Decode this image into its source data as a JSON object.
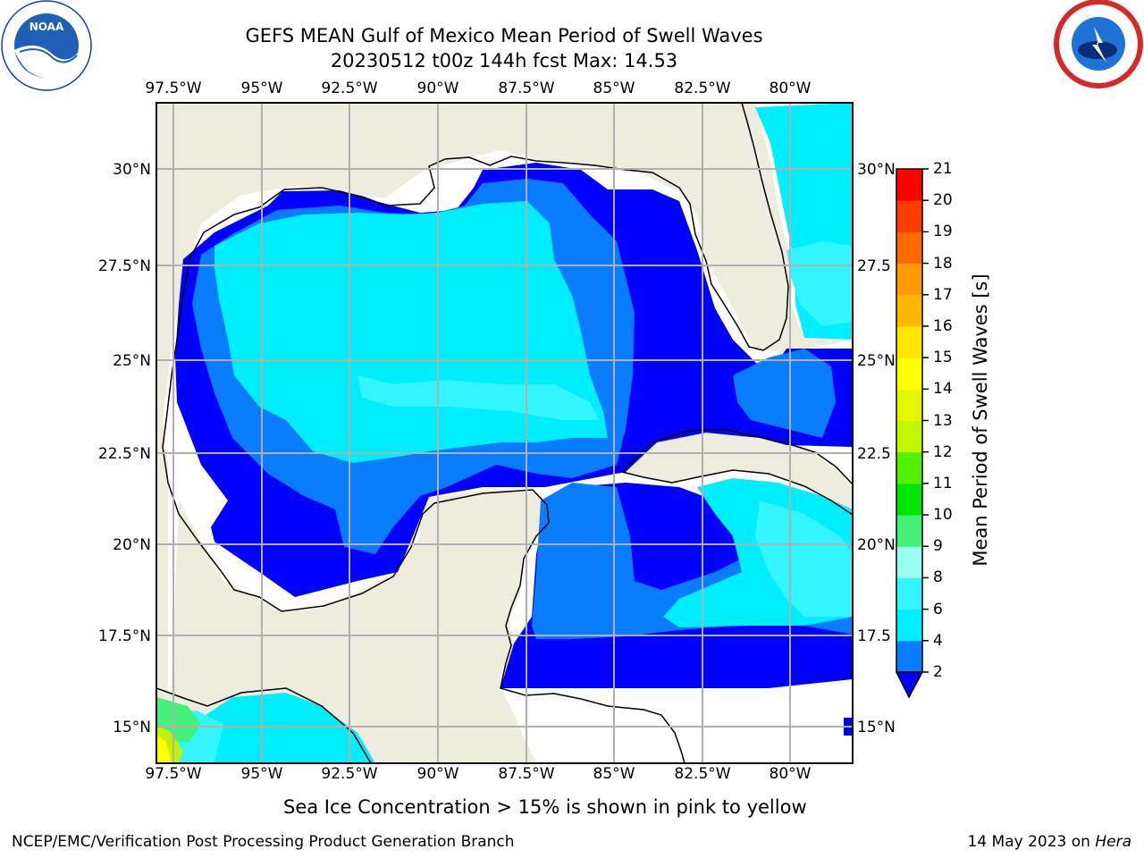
{
  "title_line1": "GEFS MEAN Gulf of Mexico Mean Period of Swell Waves",
  "title_line2": "20230512 t00z 144h fcst   Max: 14.53",
  "lon_ticks": [
    "97.5°W",
    "95°W",
    "92.5°W",
    "90°W",
    "87.5°W",
    "85°W",
    "82.5°W",
    "80°W"
  ],
  "lat_ticks_left": [
    "30°N",
    "27.5°N",
    "25°N",
    "22.5°N",
    "20°N",
    "17.5°N",
    "15°N"
  ],
  "lat_ticks_right": [
    "30°N",
    "27.5",
    "25°N",
    "22.5",
    "20°N",
    "17.5",
    "15°N"
  ],
  "colorbar": {
    "label": "Mean Period of Swell Waves [s]",
    "ticks": [
      "21",
      "20",
      "19",
      "18",
      "17",
      "16",
      "15",
      "14",
      "13",
      "12",
      "11",
      "10",
      "9",
      "8",
      "6",
      "4",
      "2"
    ],
    "bins": [
      {
        "min": 2,
        "max": 4,
        "color": "#0a7cff"
      },
      {
        "min": 4,
        "max": 6,
        "color": "#00eeff"
      },
      {
        "min": 6,
        "max": 8,
        "color": "#33f5ff"
      },
      {
        "min": 8,
        "max": 9,
        "color": "#99fff5"
      },
      {
        "min": 9,
        "max": 10,
        "color": "#44f07a"
      },
      {
        "min": 10,
        "max": 11,
        "color": "#00e600"
      },
      {
        "min": 11,
        "max": 12,
        "color": "#55ef00"
      },
      {
        "min": 12,
        "max": 13,
        "color": "#bff500"
      },
      {
        "min": 13,
        "max": 14,
        "color": "#e4f700"
      },
      {
        "min": 14,
        "max": 15,
        "color": "#ffff00"
      },
      {
        "min": 15,
        "max": 16,
        "color": "#ffe600"
      },
      {
        "min": 16,
        "max": 17,
        "color": "#ffb800"
      },
      {
        "min": 17,
        "max": 18,
        "color": "#ff9a00"
      },
      {
        "min": 18,
        "max": 19,
        "color": "#ff6a00"
      },
      {
        "min": 19,
        "max": 20,
        "color": "#ff3c00"
      },
      {
        "min": 20,
        "max": 21,
        "color": "#ff0000"
      }
    ],
    "under_color": "#0000ff"
  },
  "colors": {
    "land": "#eeecdc",
    "no_data": "#ffffff",
    "under": "#0000ff",
    "band_2_4": "#0a7cff",
    "band_4_6": "#00eeff",
    "band_6_8": "#33f5ff",
    "band_8_9": "#99fff5",
    "band_9_10": "#44f07a",
    "band_10_11": "#00e600",
    "band_12_13": "#bff500",
    "band_14_15": "#ffff00",
    "grid": "#b0b0b0"
  },
  "sea_ice_note": "Sea Ice Concentration > 15% is shown in pink to yellow",
  "footer_left": "NCEP/EMC/Verification Post Processing Product Generation Branch",
  "footer_date": "14 May 2023 on ",
  "footer_host": "Hera",
  "logos": {
    "left": "noaa-logo",
    "left_text": "NOAA",
    "right": "nws-logo"
  }
}
